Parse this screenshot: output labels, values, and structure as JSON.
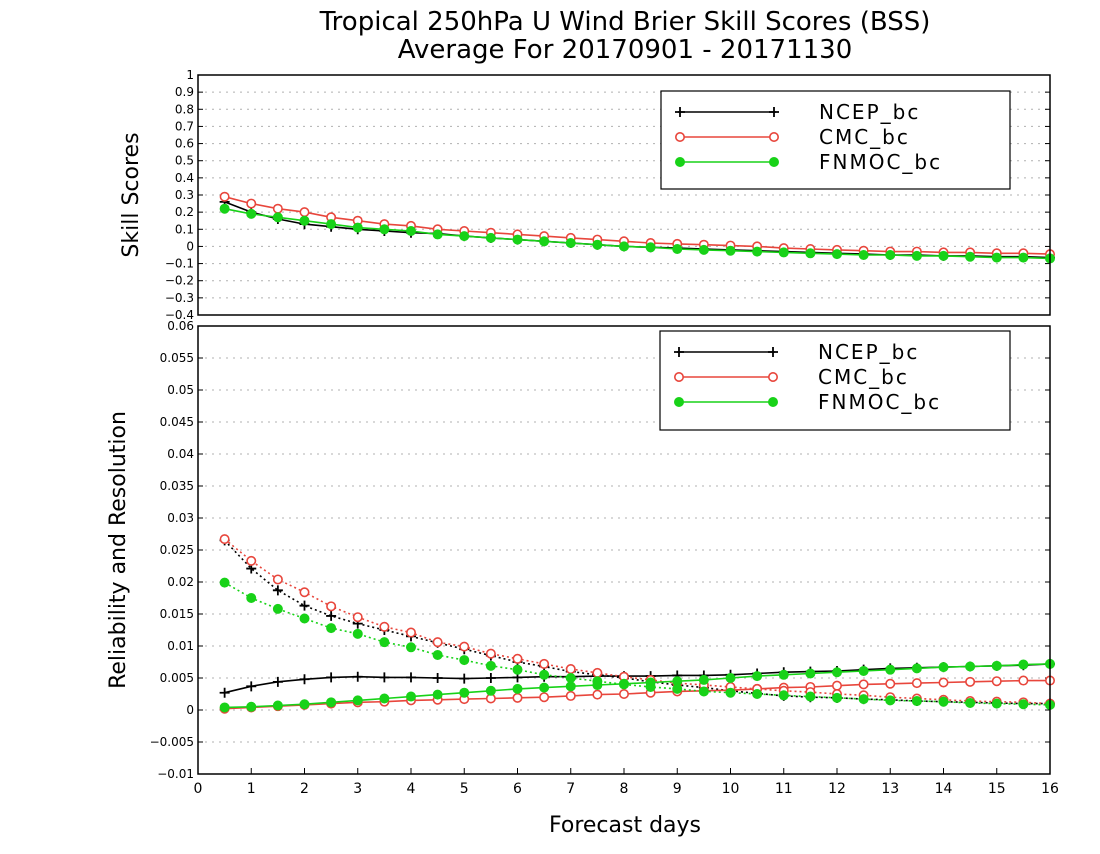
{
  "title": {
    "line1": "Tropical 250hPa U Wind Brier Skill Scores (BSS)",
    "line2": "Average For 20170901 - 20171130"
  },
  "colors": {
    "ncep": "#000000",
    "cmc": "#e8463c",
    "fnmoc": "#18d218",
    "grid": "#b0b0b0"
  },
  "chart_data": [
    {
      "type": "line",
      "panel": "top",
      "ylabel": "Skill Scores",
      "ylim": [
        -0.4,
        1
      ],
      "yticks": [
        "1",
        "0.9",
        "0.8",
        "0.7",
        "0.6",
        "0.5",
        "0.4",
        "0.3",
        "0.2",
        "0.1",
        "0",
        "−0.1",
        "−0.2",
        "−0.3",
        "−0.4"
      ],
      "grid": "dotted-horizontal",
      "legend": {
        "position": "top-right",
        "entries": [
          "NCEP_bc",
          "CMC_bc",
          "FNMOC_bc"
        ]
      },
      "x": [
        0.5,
        1,
        1.5,
        2,
        2.5,
        3,
        3.5,
        4,
        4.5,
        5,
        5.5,
        6,
        6.5,
        7,
        7.5,
        8,
        8.5,
        9,
        9.5,
        10,
        10.5,
        11,
        11.5,
        12,
        12.5,
        13,
        13.5,
        14,
        14.5,
        15,
        15.5,
        16
      ],
      "series": [
        {
          "name": "NCEP_bc",
          "style": "line-plus",
          "color": "#000000",
          "values": [
            0.26,
            0.2,
            0.16,
            0.13,
            0.115,
            0.1,
            0.09,
            0.08,
            0.075,
            0.06,
            0.05,
            0.04,
            0.03,
            0.02,
            0.01,
            0.0,
            -0.005,
            -0.01,
            -0.015,
            -0.02,
            -0.025,
            -0.03,
            -0.035,
            -0.04,
            -0.045,
            -0.05,
            -0.05,
            -0.055,
            -0.055,
            -0.06,
            -0.06,
            -0.065
          ]
        },
        {
          "name": "CMC_bc",
          "style": "line-open-circle",
          "color": "#e8463c",
          "values": [
            0.29,
            0.25,
            0.22,
            0.2,
            0.17,
            0.15,
            0.13,
            0.12,
            0.1,
            0.09,
            0.08,
            0.07,
            0.06,
            0.05,
            0.04,
            0.03,
            0.02,
            0.015,
            0.01,
            0.005,
            0.0,
            -0.01,
            -0.015,
            -0.02,
            -0.025,
            -0.03,
            -0.03,
            -0.035,
            -0.035,
            -0.04,
            -0.04,
            -0.045
          ]
        },
        {
          "name": "FNMOC_bc",
          "style": "line-filled-circle",
          "color": "#18d218",
          "values": [
            0.22,
            0.19,
            0.17,
            0.15,
            0.13,
            0.11,
            0.1,
            0.09,
            0.07,
            0.06,
            0.05,
            0.04,
            0.03,
            0.02,
            0.01,
            0.0,
            -0.005,
            -0.015,
            -0.02,
            -0.025,
            -0.03,
            -0.035,
            -0.04,
            -0.045,
            -0.05,
            -0.05,
            -0.055,
            -0.055,
            -0.06,
            -0.065,
            -0.065,
            -0.07
          ]
        }
      ]
    },
    {
      "type": "line",
      "panel": "bottom",
      "ylabel": "Reliability and Resolution",
      "xlabel": "Forecast days",
      "ylim": [
        -0.01,
        0.06
      ],
      "yticks": [
        "0.06",
        "0.055",
        "0.05",
        "0.045",
        "0.04",
        "0.035",
        "0.03",
        "0.025",
        "0.02",
        "0.015",
        "0.01",
        "0.005",
        "0",
        "−0.005",
        "−0.01"
      ],
      "xlim": [
        0,
        16
      ],
      "xticks": [
        "0",
        "1",
        "2",
        "3",
        "4",
        "5",
        "6",
        "7",
        "8",
        "9",
        "10",
        "11",
        "12",
        "13",
        "14",
        "15",
        "16"
      ],
      "grid": "dotted-horizontal",
      "legend": {
        "position": "top-right",
        "entries": [
          "NCEP_bc",
          "CMC_bc",
          "FNMOC_bc"
        ]
      },
      "x": [
        0.5,
        1,
        1.5,
        2,
        2.5,
        3,
        3.5,
        4,
        4.5,
        5,
        5.5,
        6,
        6.5,
        7,
        7.5,
        8,
        8.5,
        9,
        9.5,
        10,
        10.5,
        11,
        11.5,
        12,
        12.5,
        13,
        13.5,
        14,
        14.5,
        15,
        15.5,
        16
      ],
      "series": [
        {
          "name": "NCEP_bc",
          "metric": "resolution",
          "style": "solid-plus",
          "color": "#000000",
          "values": [
            0.0027,
            0.0037,
            0.0044,
            0.0048,
            0.0051,
            0.0052,
            0.0051,
            0.0051,
            0.005,
            0.0049,
            0.005,
            0.0051,
            0.0052,
            0.0052,
            0.0053,
            0.0053,
            0.0053,
            0.0054,
            0.0054,
            0.0055,
            0.0057,
            0.0059,
            0.006,
            0.0061,
            0.0063,
            0.0065,
            0.0066,
            0.0067,
            0.0068,
            0.0069,
            0.007,
            0.0072
          ]
        },
        {
          "name": "NCEP_bc",
          "metric": "reliability",
          "style": "dotted-plus",
          "color": "#000000",
          "values": [
            0.0265,
            0.0221,
            0.0187,
            0.0163,
            0.0147,
            0.0135,
            0.0125,
            0.0115,
            0.0105,
            0.0095,
            0.0085,
            0.0075,
            0.0068,
            0.006,
            0.0055,
            0.005,
            0.0044,
            0.0039,
            0.0035,
            0.003,
            0.0026,
            0.0022,
            0.002,
            0.0019,
            0.0017,
            0.0016,
            0.0014,
            0.0013,
            0.0012,
            0.0011,
            0.001,
            0.001
          ]
        },
        {
          "name": "CMC_bc",
          "metric": "resolution",
          "style": "solid-open-circle",
          "color": "#e8463c",
          "values": [
            0.0002,
            0.0004,
            0.0006,
            0.0008,
            0.001,
            0.0012,
            0.0013,
            0.0015,
            0.0016,
            0.0017,
            0.0018,
            0.0019,
            0.002,
            0.0022,
            0.0024,
            0.0025,
            0.0027,
            0.0029,
            0.003,
            0.0031,
            0.0033,
            0.0035,
            0.0036,
            0.0038,
            0.004,
            0.0041,
            0.0042,
            0.0043,
            0.0044,
            0.0045,
            0.0046,
            0.0046
          ]
        },
        {
          "name": "CMC_bc",
          "metric": "reliability",
          "style": "dotted-open-circle",
          "color": "#e8463c",
          "values": [
            0.0267,
            0.0233,
            0.0204,
            0.0184,
            0.0162,
            0.0145,
            0.013,
            0.0121,
            0.0106,
            0.0099,
            0.0088,
            0.008,
            0.0072,
            0.0064,
            0.0058,
            0.0052,
            0.0047,
            0.0042,
            0.0039,
            0.0036,
            0.0033,
            0.003,
            0.0028,
            0.0025,
            0.0023,
            0.002,
            0.0018,
            0.0016,
            0.0014,
            0.0013,
            0.0012,
            0.001
          ]
        },
        {
          "name": "FNMOC_bc",
          "metric": "resolution",
          "style": "solid-filled-circle",
          "color": "#18d218",
          "values": [
            0.0004,
            0.0005,
            0.0007,
            0.0009,
            0.0012,
            0.0015,
            0.0018,
            0.0021,
            0.0024,
            0.0027,
            0.003,
            0.0033,
            0.0035,
            0.0037,
            0.0039,
            0.0041,
            0.0043,
            0.0045,
            0.0047,
            0.005,
            0.0053,
            0.0055,
            0.0057,
            0.0059,
            0.0061,
            0.0063,
            0.0065,
            0.0067,
            0.0068,
            0.0069,
            0.0071,
            0.0072
          ]
        },
        {
          "name": "FNMOC_bc",
          "metric": "reliability",
          "style": "dotted-filled-circle",
          "color": "#18d218",
          "values": [
            0.0199,
            0.0175,
            0.0158,
            0.0143,
            0.0128,
            0.0119,
            0.0106,
            0.0098,
            0.0086,
            0.0078,
            0.0069,
            0.0063,
            0.0055,
            0.005,
            0.0045,
            0.004,
            0.0036,
            0.0033,
            0.0029,
            0.0027,
            0.0025,
            0.0023,
            0.0021,
            0.0019,
            0.0017,
            0.0015,
            0.0014,
            0.0013,
            0.0011,
            0.001,
            0.0009,
            0.0008
          ]
        }
      ]
    }
  ]
}
